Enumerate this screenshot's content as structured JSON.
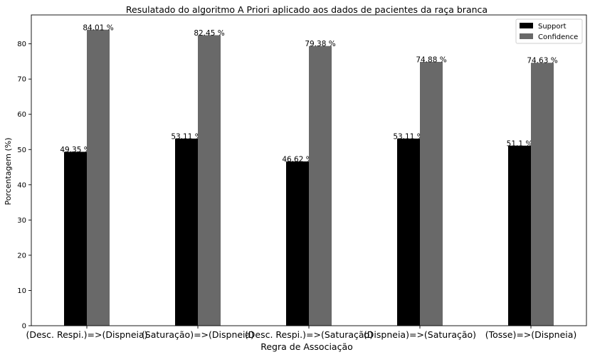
{
  "chart_data": {
    "type": "bar",
    "title": "Resulatado do algoritmo A Priori aplicado aos dados de pacientes da raça branca",
    "xlabel": "Regra de Associação",
    "ylabel": "Porcentagem (%)",
    "ylim": [
      0,
      88.2
    ],
    "yticks": [
      "0",
      "10",
      "20",
      "30",
      "40",
      "50",
      "60",
      "70",
      "80"
    ],
    "grid": false,
    "legend_position": "top-right",
    "categories": [
      "(Desc. Respi.)=>(Dispneia)",
      "(Saturação)=>(Dispneia)",
      "(Desc. Respi.)=>(Saturação)",
      "(Dispneia)=>(Saturação)",
      "(Tosse)=>(Dispneia)"
    ],
    "series": [
      {
        "name": "Support",
        "color": "#000000",
        "values": [
          49.35,
          53.11,
          46.62,
          53.11,
          51.1
        ],
        "labels": [
          "49.35 %",
          "53.11 %",
          "46.62 %",
          "53.11 %",
          "51.1 %"
        ]
      },
      {
        "name": "Confidence",
        "color": "#696969",
        "values": [
          84.01,
          82.45,
          79.38,
          74.88,
          74.63
        ],
        "labels": [
          "84.01 %",
          "82.45 %",
          "79.38 %",
          "74.88 %",
          "74.63 %"
        ]
      }
    ]
  }
}
